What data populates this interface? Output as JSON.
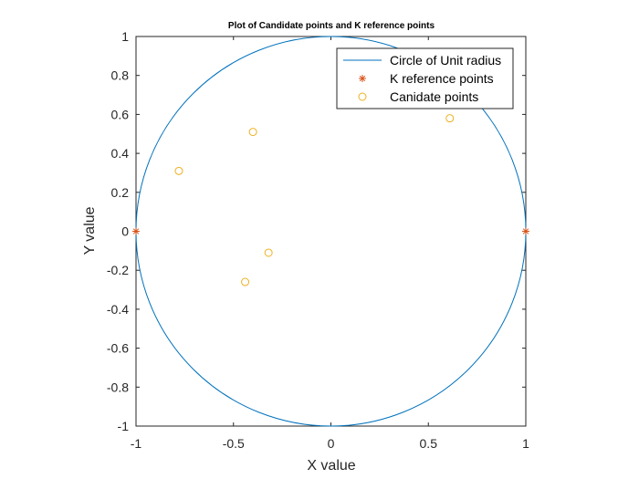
{
  "chart_data": {
    "type": "scatter",
    "title": "Plot of Candidate points and K reference points",
    "xlabel": "X value",
    "ylabel": "Y value",
    "xlim": [
      -1,
      1
    ],
    "ylim": [
      -1,
      1
    ],
    "x_ticks": [
      "-1",
      "-0.5",
      "0",
      "0.5",
      "1"
    ],
    "y_ticks": [
      "-1",
      "-0.8",
      "-0.6",
      "-0.4",
      "-0.2",
      "0",
      "0.2",
      "0.4",
      "0.6",
      "0.8",
      "1"
    ],
    "grid": false,
    "legend_position": "top-right",
    "series": [
      {
        "name": "Circle of Unit radius",
        "kind": "line",
        "shape": "unit-circle",
        "center": [
          0,
          0
        ],
        "radius": 1,
        "color": "#0072BD"
      },
      {
        "name": "K reference points",
        "kind": "marker",
        "marker": "asterisk",
        "color": "#D95319",
        "points": [
          [
            -1,
            0
          ],
          [
            1,
            0
          ]
        ]
      },
      {
        "name": "Canidate points",
        "kind": "marker",
        "marker": "circle",
        "color": "#EDB120",
        "points": [
          [
            -0.78,
            0.31
          ],
          [
            -0.4,
            0.51
          ],
          [
            0.61,
            0.58
          ],
          [
            -0.32,
            -0.11
          ],
          [
            -0.44,
            -0.26
          ]
        ]
      }
    ]
  }
}
